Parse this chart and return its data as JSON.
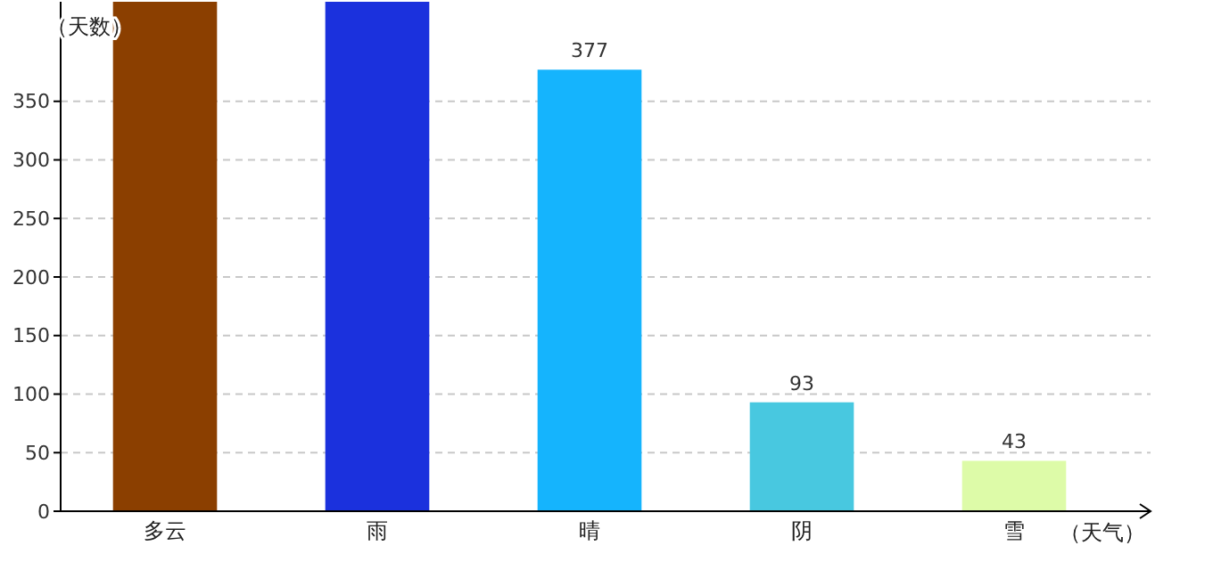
{
  "chart_data": {
    "type": "bar",
    "xlabel": "（天气）",
    "ylabel": "（天数）",
    "categories": [
      "多云",
      "雨",
      "晴",
      "阴",
      "雪"
    ],
    "values": [
      435,
      435,
      377,
      93,
      43
    ],
    "colors": [
      "#8b3f00",
      "#1b31dd",
      "#15b4fd",
      "#48c8e0",
      "#ddfba8"
    ],
    "value_labels": [
      null,
      null,
      "377",
      "93",
      "43"
    ],
    "ylim": [
      0,
      435
    ],
    "yticks": [
      0,
      50,
      100,
      150,
      200,
      250,
      300,
      350
    ],
    "grid": "y"
  }
}
